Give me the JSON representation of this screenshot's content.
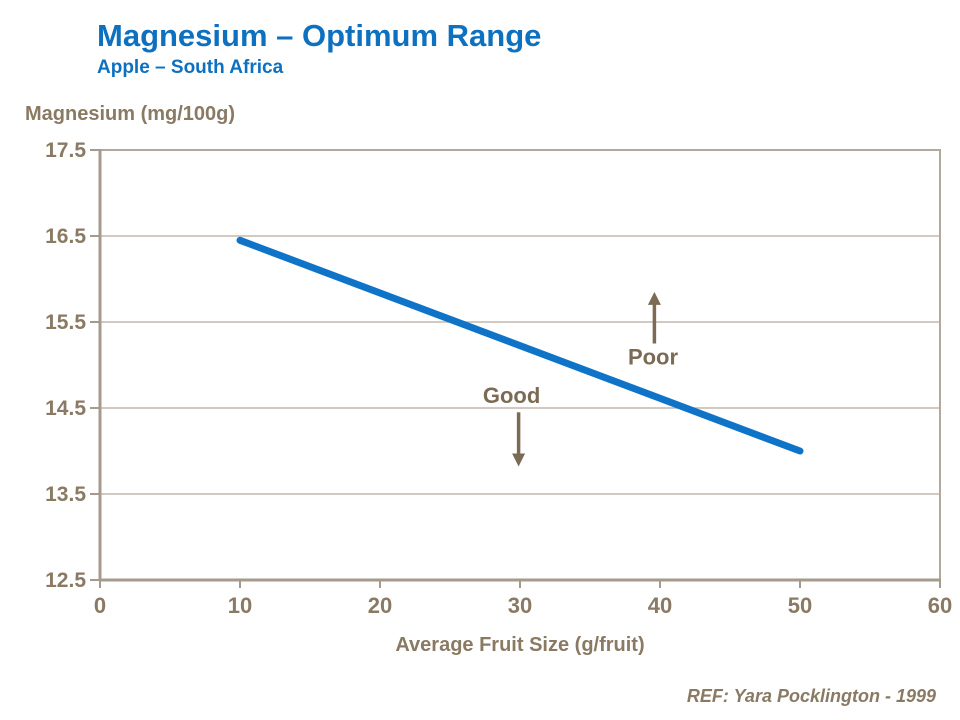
{
  "header": {
    "title": "Magnesium – Optimum Range",
    "subtitle": "Apple – South Africa"
  },
  "footer": {
    "reference": "REF: Yara Pocklington - 1999"
  },
  "colors": {
    "brand_blue": "#0d71c0",
    "line_blue": "#0f74c8",
    "axis_text": "#8a7a64",
    "annotation_text": "#7b6b54",
    "axis_line": "#a59a8d",
    "plot_border": "#b2a89b",
    "gridline": "#c3b9ac"
  },
  "chart_data": {
    "type": "line",
    "title": "Magnesium – Optimum Range",
    "subtitle": "Apple – South Africa",
    "xlabel": "Average Fruit Size (g/fruit)",
    "ylabel": "Magnesium (mg/100g)",
    "xlim": [
      0,
      60
    ],
    "ylim": [
      12.5,
      17.5
    ],
    "x_ticks": [
      0,
      10,
      20,
      30,
      40,
      50,
      60
    ],
    "y_ticks": [
      12.5,
      13.5,
      14.5,
      15.5,
      16.5,
      17.5
    ],
    "grid": "horizontal",
    "legend": "none",
    "series": [
      {
        "name": "optimum-magnesium-line",
        "color": "#0f74c8",
        "points": [
          [
            10,
            16.45
          ],
          [
            50,
            14.0
          ]
        ]
      }
    ],
    "annotations": [
      {
        "label": "Good",
        "direction": "down",
        "label_x": 29.4,
        "label_y": 14.65,
        "arrow_x": 29.9,
        "arrow_from_y": 14.45,
        "arrow_to_y": 13.82
      },
      {
        "label": "Poor",
        "direction": "up",
        "label_x": 39.5,
        "label_y": 15.1,
        "arrow_x": 39.6,
        "arrow_from_y": 15.25,
        "arrow_to_y": 15.85
      }
    ]
  }
}
